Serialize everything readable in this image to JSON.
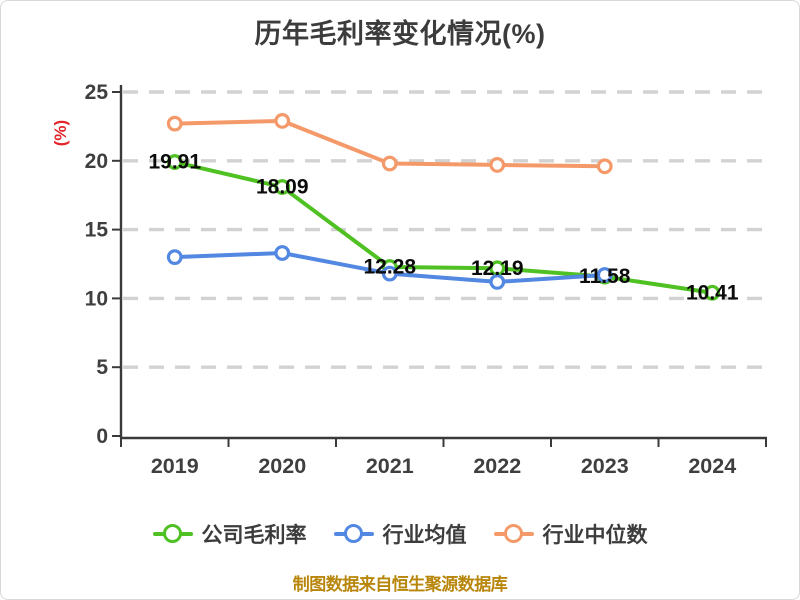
{
  "page": {
    "background": "#ffffff",
    "frame_border": "#d8d8d8"
  },
  "chart_data": {
    "type": "line",
    "title": "历年毛利率变化情况(%)",
    "title_color": "#3c3c3c",
    "xlabel": "",
    "ylabel": "(%)",
    "ylabel_color": "#e3242b",
    "categories": [
      "2019",
      "2020",
      "2021",
      "2022",
      "2023",
      "2024"
    ],
    "series": [
      {
        "name": "公司毛利率",
        "color": "#4fc122",
        "values": [
          19.91,
          18.09,
          12.28,
          12.19,
          11.58,
          10.41
        ],
        "labels": [
          "19.91",
          "18.09",
          "12.28",
          "12.19",
          "11.58",
          "10.41"
        ],
        "show_labels": true
      },
      {
        "name": "行业均值",
        "color": "#5287e2",
        "values": [
          13.0,
          13.3,
          11.8,
          11.2,
          11.7,
          null
        ],
        "show_labels": false
      },
      {
        "name": "行业中位数",
        "color": "#f49a6a",
        "values": [
          22.7,
          22.9,
          19.8,
          19.7,
          19.6,
          null
        ],
        "show_labels": false
      }
    ],
    "ylim": [
      0,
      25
    ],
    "yticks": [
      0,
      5,
      10,
      15,
      20,
      25
    ],
    "grid": "horizontal dashed",
    "grid_color": "#d2d2d2",
    "axis_color": "#3a3a3a",
    "tick_label_color": "#3f3f3f",
    "data_label_color": "#0b0b0b",
    "legend_position": "bottom",
    "marker_style": "open-circle"
  },
  "footer": {
    "text": "制图数据来自恒生聚源数据库",
    "color": "#b8860b"
  }
}
